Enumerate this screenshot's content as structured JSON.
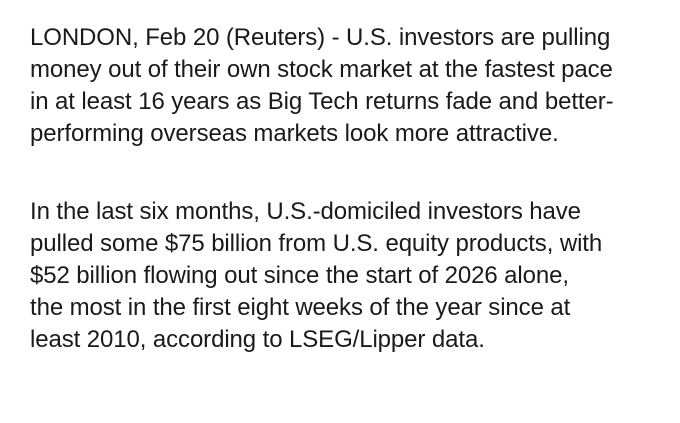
{
  "article": {
    "paragraphs": [
      {
        "lines": [
          "LONDON, Feb 20 (Reuters) - U.S. investors are pulling",
          "money out of their own stock market at the fastest pace",
          "in at least 16 years as Big Tech returns fade and better-",
          "performing overseas markets look more attractive."
        ]
      },
      {
        "lines": [
          "In the last six months, U.S.-domiciled investors have",
          "pulled some $75 billion from U.S. equity products, with",
          "$52 billion flowing out since the start of 2026 alone,",
          "the most in the first eight weeks of the year since at",
          "least 2010, according to LSEG/Lipper data."
        ]
      }
    ]
  }
}
